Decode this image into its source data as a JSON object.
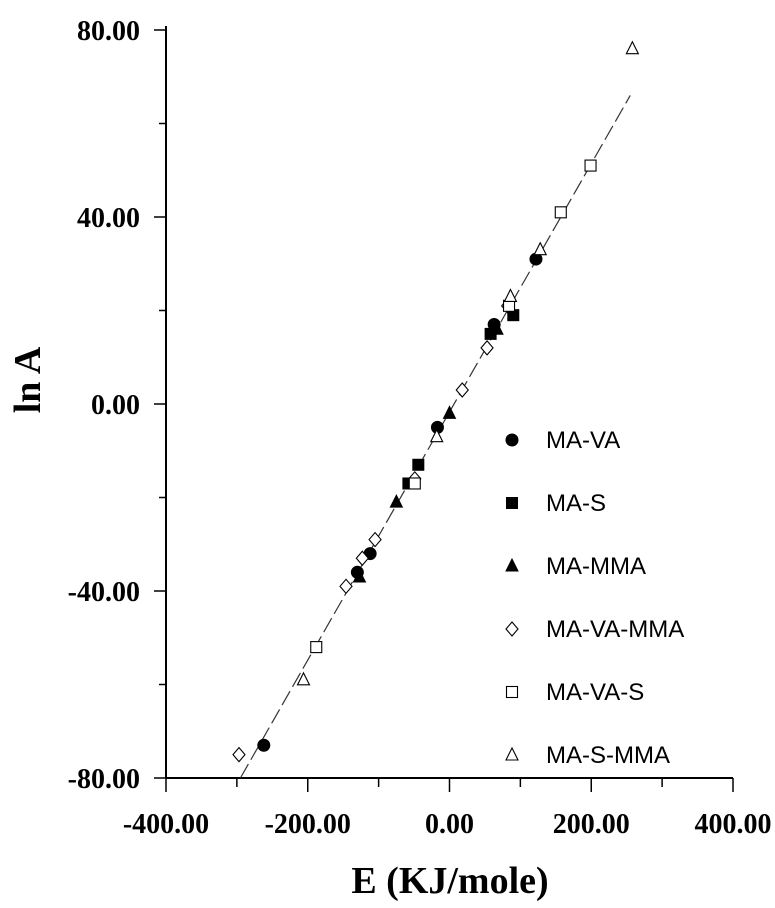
{
  "chart_data": {
    "type": "scatter",
    "xlabel": "E (KJ/mole)",
    "ylabel": "ln A",
    "xlim": [
      -400,
      400
    ],
    "ylim": [
      -80,
      80
    ],
    "xticks": [
      -400,
      -200,
      0,
      200,
      400
    ],
    "xtick_labels": [
      "-400.00",
      "-200.00",
      "0.00",
      "200.00",
      "400.00"
    ],
    "yticks": [
      -80,
      -40,
      0,
      40,
      80
    ],
    "ytick_labels": [
      "-80.00",
      "-40.00",
      "0.00",
      "40.00",
      "80.00"
    ],
    "grid": false,
    "legend_position": "right",
    "fit_line": {
      "x": [
        -295,
        255
      ],
      "y": [
        -80,
        66
      ]
    },
    "series": [
      {
        "name": "MA-VA",
        "marker": "filled-circle",
        "points": [
          [
            -262,
            -73
          ],
          [
            -130,
            -36
          ],
          [
            -112,
            -32
          ],
          [
            -17,
            -5
          ],
          [
            63,
            17
          ],
          [
            122,
            31
          ]
        ]
      },
      {
        "name": "MA-S",
        "marker": "filled-square",
        "points": [
          [
            -58,
            -17
          ],
          [
            -44,
            -13
          ],
          [
            58,
            15
          ],
          [
            90,
            19
          ]
        ]
      },
      {
        "name": "MA-MMA",
        "marker": "filled-triangle",
        "points": [
          [
            -127,
            -37
          ],
          [
            -75,
            -21
          ],
          [
            0,
            -2
          ],
          [
            67,
            16
          ]
        ]
      },
      {
        "name": "MA-VA-MMA",
        "marker": "open-diamond",
        "points": [
          [
            -297,
            -75
          ],
          [
            -146,
            -39
          ],
          [
            -123,
            -33
          ],
          [
            -105,
            -29
          ],
          [
            -49,
            -16
          ],
          [
            18,
            3
          ],
          [
            53,
            12
          ],
          [
            82,
            21
          ]
        ]
      },
      {
        "name": "MA-VA-S",
        "marker": "open-square",
        "points": [
          [
            -188,
            -52
          ],
          [
            -49,
            -17
          ],
          [
            84,
            21
          ],
          [
            157,
            41
          ],
          [
            199,
            51
          ]
        ]
      },
      {
        "name": "MA-S-MMA",
        "marker": "open-triangle",
        "points": [
          [
            -206,
            -59
          ],
          [
            -18,
            -7
          ],
          [
            86,
            23
          ],
          [
            128,
            33
          ],
          [
            258,
            76
          ]
        ]
      }
    ]
  }
}
